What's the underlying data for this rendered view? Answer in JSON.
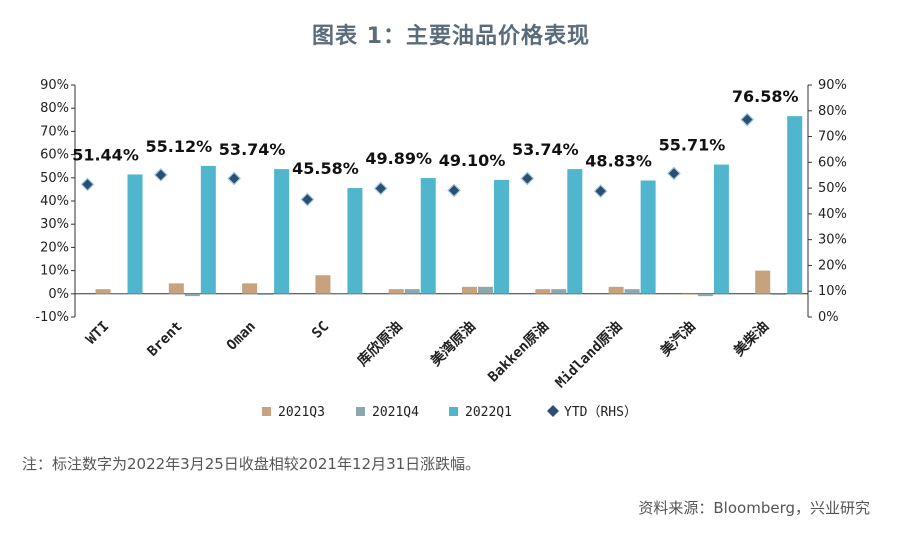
{
  "title": "图表 1：主要油品价格表现",
  "note": "注：标注数字为2022年3月25日收盘相较2021年12月31日涨跌幅。",
  "source": "资料来源：Bloomberg，兴业研究",
  "colors": {
    "2021Q3": "#c7a27c",
    "2021Q4": "#8ca8ad",
    "2022Q1": "#4fb6cd",
    "YTD": "#2a4f73"
  },
  "chart_data": {
    "type": "bar",
    "categories": [
      "WTI",
      "Brent",
      "Oman",
      "SC",
      "库欣原油",
      "美湾原油",
      "Bakken原油",
      "Midland原油",
      "美汽油",
      "美柴油"
    ],
    "series": [
      {
        "name": "2021Q3",
        "axis": "left",
        "values": [
          2,
          4.5,
          4.5,
          8,
          2,
          3,
          2,
          3,
          0,
          10
        ]
      },
      {
        "name": "2021Q4",
        "axis": "left",
        "values": [
          0,
          -1,
          -0.5,
          0,
          2,
          3,
          2,
          2,
          -1,
          -0.5
        ]
      },
      {
        "name": "2022Q1",
        "axis": "left",
        "values": [
          51.44,
          55.12,
          53.74,
          45.58,
          49.89,
          49.1,
          53.74,
          48.83,
          55.71,
          76.58
        ]
      },
      {
        "name": "YTD（RHS）",
        "axis": "right",
        "type": "scatter",
        "values": [
          51.44,
          55.12,
          53.74,
          45.58,
          49.89,
          49.1,
          53.74,
          48.83,
          55.71,
          76.58
        ]
      }
    ],
    "data_labels": [
      "51.44%",
      "55.12%",
      "53.74%",
      "45.58%",
      "49.89%",
      "49.10%",
      "53.74%",
      "48.83%",
      "55.71%",
      "76.58%"
    ],
    "y_left": {
      "min": -10,
      "max": 90,
      "ticks": [
        "-10%",
        "0%",
        "10%",
        "20%",
        "30%",
        "40%",
        "50%",
        "60%",
        "70%",
        "80%",
        "90%"
      ]
    },
    "y_right": {
      "min": 0,
      "max": 90,
      "ticks": [
        "0%",
        "10%",
        "20%",
        "30%",
        "40%",
        "50%",
        "60%",
        "70%",
        "80%",
        "90%"
      ]
    },
    "legend": [
      "2021Q3",
      "2021Q4",
      "2022Q1",
      "YTD（RHS）"
    ],
    "legend_position": "bottom",
    "grid": false
  }
}
